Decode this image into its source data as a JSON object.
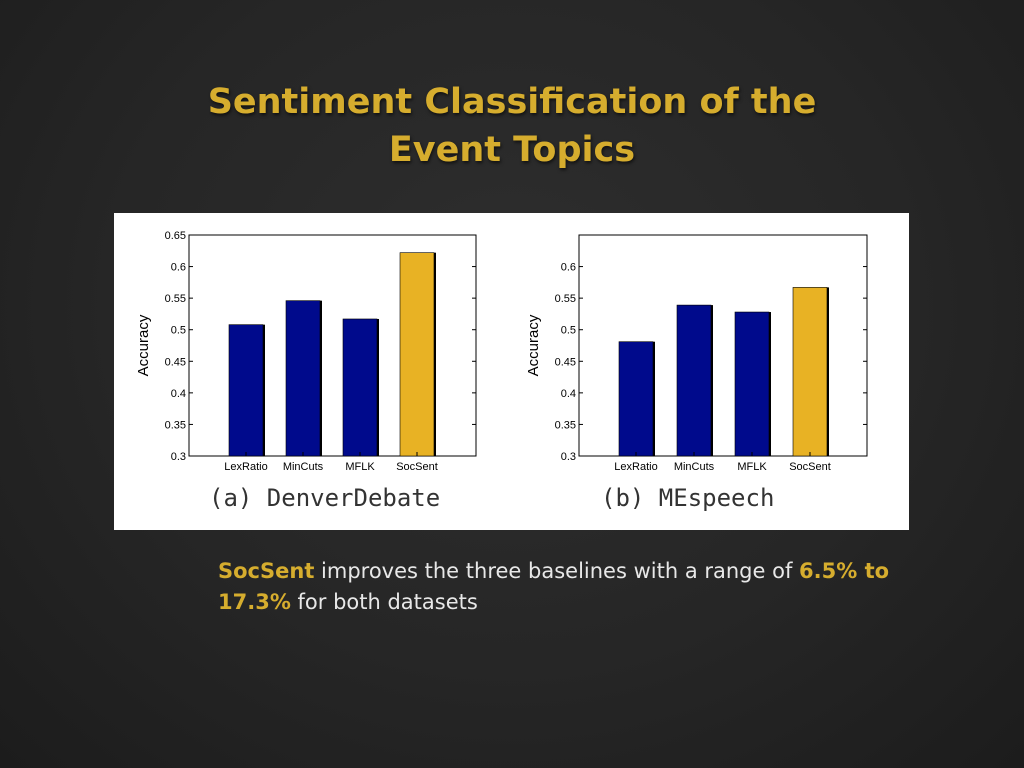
{
  "slide": {
    "title_line1": "Sentiment Classification of the",
    "title_line2": "Event Topics"
  },
  "summary": {
    "lead": "SocSent",
    "text1": " improves the three baselines with a range of ",
    "range": "6.5% to 17.3%",
    "text2": " for both datasets"
  },
  "colors": {
    "baseline_bar": "#000a8c",
    "highlight_bar": "#e8b224",
    "title": "#d6ad2e"
  },
  "chart_data": [
    {
      "type": "bar",
      "caption": "(a) DenverDebate",
      "ylabel": "Accuracy",
      "categories": [
        "LexRatio",
        "MinCuts",
        "MFLK",
        "SocSent"
      ],
      "values": [
        0.508,
        0.546,
        0.517,
        0.622
      ],
      "highlight_index": 3,
      "ylim": [
        0.3,
        0.65
      ],
      "yticks": [
        "0.3",
        "0.35",
        "0.4",
        "0.45",
        "0.5",
        "0.55",
        "0.6",
        "0.65"
      ],
      "ytick_values": [
        0.3,
        0.35,
        0.4,
        0.45,
        0.5,
        0.55,
        0.6,
        0.65
      ],
      "grid": false
    },
    {
      "type": "bar",
      "caption": "(b) MEspeech",
      "ylabel": "Accuracy",
      "categories": [
        "LexRatio",
        "MinCuts",
        "MFLK",
        "SocSent"
      ],
      "values": [
        0.481,
        0.539,
        0.528,
        0.567
      ],
      "highlight_index": 3,
      "ylim": [
        0.3,
        0.65
      ],
      "yticks": [
        "0.3",
        "0.35",
        "0.4",
        "0.45",
        "0.5",
        "0.55",
        "0.6"
      ],
      "ytick_values": [
        0.3,
        0.35,
        0.4,
        0.45,
        0.5,
        0.55,
        0.6
      ],
      "grid": false
    }
  ]
}
